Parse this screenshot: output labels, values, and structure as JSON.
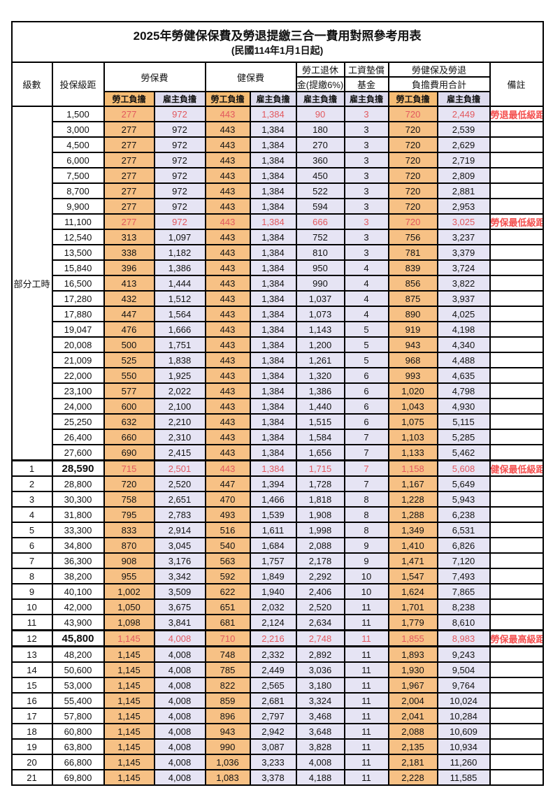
{
  "title": "2025年勞健保保費及勞退提繳三合一費用對照參考用表",
  "subtitle": "(民國114年1月1日起)",
  "header": {
    "level": "級數",
    "salary_bracket": "投保級距",
    "labor_insurance": "勞保費",
    "health_insurance": "健保費",
    "pension_line1": "勞工退休",
    "pension_line2": "金(提繳6%)",
    "wage_fund_line1": "工資墊償",
    "wage_fund_line2": "基金",
    "total_line1": "勞健保及勞退",
    "total_line2": "負擔費用合計",
    "remark": "備註",
    "employee_share": "勞工負擔",
    "employer_share": "雇主負擔"
  },
  "part_time_label": "部分工時",
  "colors": {
    "employee_bg": "#F7C185",
    "employer_bg": "#E6E4F4",
    "subheader_employee_bg": "#F5BC74",
    "subheader_employer_bg": "#DDDBEE",
    "highlight_value_red": "#E2585E",
    "remark_red": "#F4504F",
    "border_black": "#000000"
  },
  "rows": [
    {
      "level": "",
      "salary": "1,500",
      "labor_emp": "277",
      "labor_er": "972",
      "health_emp": "443",
      "health_er": "1,384",
      "pension_er": "90",
      "fund_er": "3",
      "total_emp": "720",
      "total_er": "2,449",
      "remark": "勞退最低級距",
      "flags": "red"
    },
    {
      "level": "",
      "salary": "3,000",
      "labor_emp": "277",
      "labor_er": "972",
      "health_emp": "443",
      "health_er": "1,384",
      "pension_er": "180",
      "fund_er": "3",
      "total_emp": "720",
      "total_er": "2,539",
      "remark": "",
      "flags": ""
    },
    {
      "level": "",
      "salary": "4,500",
      "labor_emp": "277",
      "labor_er": "972",
      "health_emp": "443",
      "health_er": "1,384",
      "pension_er": "270",
      "fund_er": "3",
      "total_emp": "720",
      "total_er": "2,629",
      "remark": "",
      "flags": ""
    },
    {
      "level": "",
      "salary": "6,000",
      "labor_emp": "277",
      "labor_er": "972",
      "health_emp": "443",
      "health_er": "1,384",
      "pension_er": "360",
      "fund_er": "3",
      "total_emp": "720",
      "total_er": "2,719",
      "remark": "",
      "flags": ""
    },
    {
      "level": "",
      "salary": "7,500",
      "labor_emp": "277",
      "labor_er": "972",
      "health_emp": "443",
      "health_er": "1,384",
      "pension_er": "450",
      "fund_er": "3",
      "total_emp": "720",
      "total_er": "2,809",
      "remark": "",
      "flags": ""
    },
    {
      "level": "",
      "salary": "8,700",
      "labor_emp": "277",
      "labor_er": "972",
      "health_emp": "443",
      "health_er": "1,384",
      "pension_er": "522",
      "fund_er": "3",
      "total_emp": "720",
      "total_er": "2,881",
      "remark": "",
      "flags": ""
    },
    {
      "level": "",
      "salary": "9,900",
      "labor_emp": "277",
      "labor_er": "972",
      "health_emp": "443",
      "health_er": "1,384",
      "pension_er": "594",
      "fund_er": "3",
      "total_emp": "720",
      "total_er": "2,953",
      "remark": "",
      "flags": ""
    },
    {
      "level": "",
      "salary": "11,100",
      "labor_emp": "277",
      "labor_er": "972",
      "health_emp": "443",
      "health_er": "1,384",
      "pension_er": "666",
      "fund_er": "3",
      "total_emp": "720",
      "total_er": "3,025",
      "remark": "勞保最低級距",
      "flags": "red"
    },
    {
      "level": "",
      "salary": "12,540",
      "labor_emp": "313",
      "labor_er": "1,097",
      "health_emp": "443",
      "health_er": "1,384",
      "pension_er": "752",
      "fund_er": "3",
      "total_emp": "756",
      "total_er": "3,237",
      "remark": "",
      "flags": ""
    },
    {
      "level": "",
      "salary": "13,500",
      "labor_emp": "338",
      "labor_er": "1,182",
      "health_emp": "443",
      "health_er": "1,384",
      "pension_er": "810",
      "fund_er": "3",
      "total_emp": "781",
      "total_er": "3,379",
      "remark": "",
      "flags": ""
    },
    {
      "level": "",
      "salary": "15,840",
      "labor_emp": "396",
      "labor_er": "1,386",
      "health_emp": "443",
      "health_er": "1,384",
      "pension_er": "950",
      "fund_er": "4",
      "total_emp": "839",
      "total_er": "3,724",
      "remark": "",
      "flags": ""
    },
    {
      "level": "",
      "salary": "16,500",
      "labor_emp": "413",
      "labor_er": "1,444",
      "health_emp": "443",
      "health_er": "1,384",
      "pension_er": "990",
      "fund_er": "4",
      "total_emp": "856",
      "total_er": "3,822",
      "remark": "",
      "flags": ""
    },
    {
      "level": "",
      "salary": "17,280",
      "labor_emp": "432",
      "labor_er": "1,512",
      "health_emp": "443",
      "health_er": "1,384",
      "pension_er": "1,037",
      "fund_er": "4",
      "total_emp": "875",
      "total_er": "3,937",
      "remark": "",
      "flags": ""
    },
    {
      "level": "",
      "salary": "17,880",
      "labor_emp": "447",
      "labor_er": "1,564",
      "health_emp": "443",
      "health_er": "1,384",
      "pension_er": "1,073",
      "fund_er": "4",
      "total_emp": "890",
      "total_er": "4,025",
      "remark": "",
      "flags": ""
    },
    {
      "level": "",
      "salary": "19,047",
      "labor_emp": "476",
      "labor_er": "1,666",
      "health_emp": "443",
      "health_er": "1,384",
      "pension_er": "1,143",
      "fund_er": "5",
      "total_emp": "919",
      "total_er": "4,198",
      "remark": "",
      "flags": ""
    },
    {
      "level": "",
      "salary": "20,008",
      "labor_emp": "500",
      "labor_er": "1,751",
      "health_emp": "443",
      "health_er": "1,384",
      "pension_er": "1,200",
      "fund_er": "5",
      "total_emp": "943",
      "total_er": "4,340",
      "remark": "",
      "flags": ""
    },
    {
      "level": "",
      "salary": "21,009",
      "labor_emp": "525",
      "labor_er": "1,838",
      "health_emp": "443",
      "health_er": "1,384",
      "pension_er": "1,261",
      "fund_er": "5",
      "total_emp": "968",
      "total_er": "4,488",
      "remark": "",
      "flags": ""
    },
    {
      "level": "",
      "salary": "22,000",
      "labor_emp": "550",
      "labor_er": "1,925",
      "health_emp": "443",
      "health_er": "1,384",
      "pension_er": "1,320",
      "fund_er": "6",
      "total_emp": "993",
      "total_er": "4,635",
      "remark": "",
      "flags": ""
    },
    {
      "level": "",
      "salary": "23,100",
      "labor_emp": "577",
      "labor_er": "2,022",
      "health_emp": "443",
      "health_er": "1,384",
      "pension_er": "1,386",
      "fund_er": "6",
      "total_emp": "1,020",
      "total_er": "4,798",
      "remark": "",
      "flags": ""
    },
    {
      "level": "",
      "salary": "24,000",
      "labor_emp": "600",
      "labor_er": "2,100",
      "health_emp": "443",
      "health_er": "1,384",
      "pension_er": "1,440",
      "fund_er": "6",
      "total_emp": "1,043",
      "total_er": "4,930",
      "remark": "",
      "flags": ""
    },
    {
      "level": "",
      "salary": "25,250",
      "labor_emp": "632",
      "labor_er": "2,210",
      "health_emp": "443",
      "health_er": "1,384",
      "pension_er": "1,515",
      "fund_er": "6",
      "total_emp": "1,075",
      "total_er": "5,115",
      "remark": "",
      "flags": ""
    },
    {
      "level": "",
      "salary": "26,400",
      "labor_emp": "660",
      "labor_er": "2,310",
      "health_emp": "443",
      "health_er": "1,384",
      "pension_er": "1,584",
      "fund_er": "7",
      "total_emp": "1,103",
      "total_er": "5,285",
      "remark": "",
      "flags": ""
    },
    {
      "level": "",
      "salary": "27,600",
      "labor_emp": "690",
      "labor_er": "2,415",
      "health_emp": "443",
      "health_er": "1,384",
      "pension_er": "1,656",
      "fund_er": "7",
      "total_emp": "1,133",
      "total_er": "5,462",
      "remark": "",
      "flags": ""
    },
    {
      "level": "1",
      "salary": "28,590",
      "labor_emp": "715",
      "labor_er": "2,501",
      "health_emp": "443",
      "health_er": "1,384",
      "pension_er": "1,715",
      "fund_er": "7",
      "total_emp": "1,158",
      "total_er": "5,608",
      "remark": "健保最低級距",
      "flags": "red bold-salary thick-top"
    },
    {
      "level": "2",
      "salary": "28,800",
      "labor_emp": "720",
      "labor_er": "2,520",
      "health_emp": "447",
      "health_er": "1,394",
      "pension_er": "1,728",
      "fund_er": "7",
      "total_emp": "1,167",
      "total_er": "5,649",
      "remark": "",
      "flags": ""
    },
    {
      "level": "3",
      "salary": "30,300",
      "labor_emp": "758",
      "labor_er": "2,651",
      "health_emp": "470",
      "health_er": "1,466",
      "pension_er": "1,818",
      "fund_er": "8",
      "total_emp": "1,228",
      "total_er": "5,943",
      "remark": "",
      "flags": ""
    },
    {
      "level": "4",
      "salary": "31,800",
      "labor_emp": "795",
      "labor_er": "2,783",
      "health_emp": "493",
      "health_er": "1,539",
      "pension_er": "1,908",
      "fund_er": "8",
      "total_emp": "1,288",
      "total_er": "6,238",
      "remark": "",
      "flags": ""
    },
    {
      "level": "5",
      "salary": "33,300",
      "labor_emp": "833",
      "labor_er": "2,914",
      "health_emp": "516",
      "health_er": "1,611",
      "pension_er": "1,998",
      "fund_er": "8",
      "total_emp": "1,349",
      "total_er": "6,531",
      "remark": "",
      "flags": ""
    },
    {
      "level": "6",
      "salary": "34,800",
      "labor_emp": "870",
      "labor_er": "3,045",
      "health_emp": "540",
      "health_er": "1,684",
      "pension_er": "2,088",
      "fund_er": "9",
      "total_emp": "1,410",
      "total_er": "6,826",
      "remark": "",
      "flags": ""
    },
    {
      "level": "7",
      "salary": "36,300",
      "labor_emp": "908",
      "labor_er": "3,176",
      "health_emp": "563",
      "health_er": "1,757",
      "pension_er": "2,178",
      "fund_er": "9",
      "total_emp": "1,471",
      "total_er": "7,120",
      "remark": "",
      "flags": ""
    },
    {
      "level": "8",
      "salary": "38,200",
      "labor_emp": "955",
      "labor_er": "3,342",
      "health_emp": "592",
      "health_er": "1,849",
      "pension_er": "2,292",
      "fund_er": "10",
      "total_emp": "1,547",
      "total_er": "7,493",
      "remark": "",
      "flags": ""
    },
    {
      "level": "9",
      "salary": "40,100",
      "labor_emp": "1,002",
      "labor_er": "3,509",
      "health_emp": "622",
      "health_er": "1,940",
      "pension_er": "2,406",
      "fund_er": "10",
      "total_emp": "1,624",
      "total_er": "7,865",
      "remark": "",
      "flags": ""
    },
    {
      "level": "10",
      "salary": "42,000",
      "labor_emp": "1,050",
      "labor_er": "3,675",
      "health_emp": "651",
      "health_er": "2,032",
      "pension_er": "2,520",
      "fund_er": "11",
      "total_emp": "1,701",
      "total_er": "8,238",
      "remark": "",
      "flags": ""
    },
    {
      "level": "11",
      "salary": "43,900",
      "labor_emp": "1,098",
      "labor_er": "3,841",
      "health_emp": "681",
      "health_er": "2,124",
      "pension_er": "2,634",
      "fund_er": "11",
      "total_emp": "1,779",
      "total_er": "8,610",
      "remark": "",
      "flags": ""
    },
    {
      "level": "12",
      "salary": "45,800",
      "labor_emp": "1,145",
      "labor_er": "4,008",
      "health_emp": "710",
      "health_er": "2,216",
      "pension_er": "2,748",
      "fund_er": "11",
      "total_emp": "1,855",
      "total_er": "8,983",
      "remark": "勞保最高級距",
      "flags": "red bold-salary thick-top thick-bottom"
    },
    {
      "level": "13",
      "salary": "48,200",
      "labor_emp": "1,145",
      "labor_er": "4,008",
      "health_emp": "748",
      "health_er": "2,332",
      "pension_er": "2,892",
      "fund_er": "11",
      "total_emp": "1,893",
      "total_er": "9,243",
      "remark": "",
      "flags": ""
    },
    {
      "level": "14",
      "salary": "50,600",
      "labor_emp": "1,145",
      "labor_er": "4,008",
      "health_emp": "785",
      "health_er": "2,449",
      "pension_er": "3,036",
      "fund_er": "11",
      "total_emp": "1,930",
      "total_er": "9,504",
      "remark": "",
      "flags": ""
    },
    {
      "level": "15",
      "salary": "53,000",
      "labor_emp": "1,145",
      "labor_er": "4,008",
      "health_emp": "822",
      "health_er": "2,565",
      "pension_er": "3,180",
      "fund_er": "11",
      "total_emp": "1,967",
      "total_er": "9,764",
      "remark": "",
      "flags": ""
    },
    {
      "level": "16",
      "salary": "55,400",
      "labor_emp": "1,145",
      "labor_er": "4,008",
      "health_emp": "859",
      "health_er": "2,681",
      "pension_er": "3,324",
      "fund_er": "11",
      "total_emp": "2,004",
      "total_er": "10,024",
      "remark": "",
      "flags": ""
    },
    {
      "level": "17",
      "salary": "57,800",
      "labor_emp": "1,145",
      "labor_er": "4,008",
      "health_emp": "896",
      "health_er": "2,797",
      "pension_er": "3,468",
      "fund_er": "11",
      "total_emp": "2,041",
      "total_er": "10,284",
      "remark": "",
      "flags": ""
    },
    {
      "level": "18",
      "salary": "60,800",
      "labor_emp": "1,145",
      "labor_er": "4,008",
      "health_emp": "943",
      "health_er": "2,942",
      "pension_er": "3,648",
      "fund_er": "11",
      "total_emp": "2,088",
      "total_er": "10,609",
      "remark": "",
      "flags": ""
    },
    {
      "level": "19",
      "salary": "63,800",
      "labor_emp": "1,145",
      "labor_er": "4,008",
      "health_emp": "990",
      "health_er": "3,087",
      "pension_er": "3,828",
      "fund_er": "11",
      "total_emp": "2,135",
      "total_er": "10,934",
      "remark": "",
      "flags": ""
    },
    {
      "level": "20",
      "salary": "66,800",
      "labor_emp": "1,145",
      "labor_er": "4,008",
      "health_emp": "1,036",
      "health_er": "3,233",
      "pension_er": "4,008",
      "fund_er": "11",
      "total_emp": "2,181",
      "total_er": "11,260",
      "remark": "",
      "flags": ""
    },
    {
      "level": "21",
      "salary": "69,800",
      "labor_emp": "1,145",
      "labor_er": "4,008",
      "health_emp": "1,083",
      "health_er": "3,378",
      "pension_er": "4,188",
      "fund_er": "11",
      "total_emp": "2,228",
      "total_er": "11,585",
      "remark": "",
      "flags": ""
    }
  ]
}
